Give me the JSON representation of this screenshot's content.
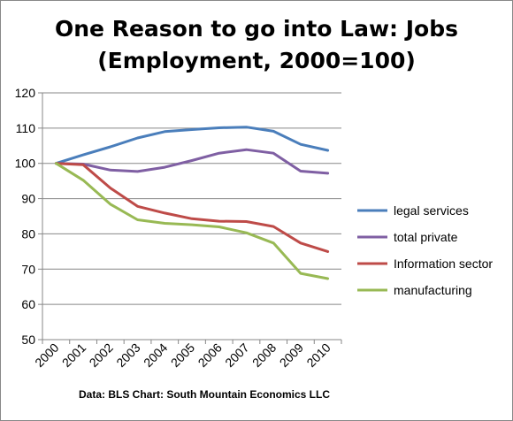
{
  "chart_data": {
    "type": "line",
    "title_lines": [
      "One Reason to go into Law: Jobs",
      "(Employment, 2000=100)"
    ],
    "x": [
      "2000",
      "2001",
      "2002",
      "2003",
      "2004",
      "2005",
      "2006",
      "2007",
      "2008",
      "2009",
      "2010"
    ],
    "ylim": [
      50,
      120
    ],
    "yticks": [
      50,
      60,
      70,
      80,
      90,
      100,
      110,
      120
    ],
    "grid": "horizontal",
    "legend_position": "right",
    "series": [
      {
        "name": "legal services",
        "color": "#4a7ebb",
        "values": [
          100,
          102.4,
          104.7,
          107.2,
          109.0,
          109.6,
          110.1,
          110.3,
          109.1,
          105.4,
          103.7
        ]
      },
      {
        "name": "total private",
        "color": "#7f5fa3",
        "values": [
          100,
          99.8,
          98.1,
          97.7,
          98.9,
          100.8,
          102.9,
          103.9,
          102.9,
          97.8,
          97.2
        ]
      },
      {
        "name": "Information sector",
        "color": "#be4b48",
        "values": [
          100,
          99.6,
          93.0,
          87.8,
          85.9,
          84.3,
          83.6,
          83.5,
          82.1,
          77.4,
          75.0
        ]
      },
      {
        "name": "manufacturing",
        "color": "#98b954",
        "values": [
          100,
          95.2,
          88.4,
          84.0,
          83.0,
          82.6,
          82.0,
          80.3,
          77.4,
          68.8,
          67.3
        ]
      }
    ],
    "source_note": "Data: BLS  Chart: South Mountain Economics LLC"
  }
}
